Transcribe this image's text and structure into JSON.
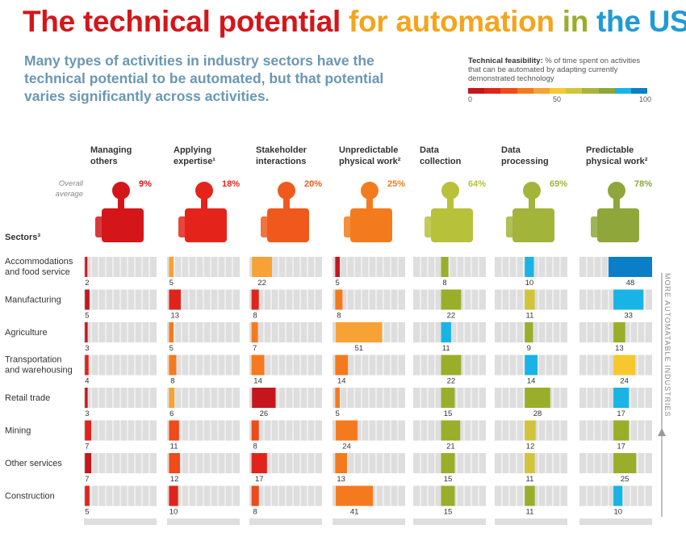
{
  "title_parts": [
    {
      "text": "The technical potential ",
      "color": "#d4161a"
    },
    {
      "text": "for automation ",
      "color": "#f4a51c"
    },
    {
      "text": "in ",
      "color": "#9aae2a"
    },
    {
      "text": "the US",
      "color": "#1f9bd4"
    }
  ],
  "subtitle": "Many types of activities in industry sectors have the technical potential to be automated, but that potential varies significantly across activities.",
  "legend": {
    "bold": "Technical feasibility:",
    "text": " % of time spent on activities that can be automated by adapting currently demonstrated technology",
    "colors": [
      "#c4161c",
      "#e0241b",
      "#ee4a1a",
      "#f57a1d",
      "#f7a234",
      "#f5c82d",
      "#d2c43a",
      "#a9b53b",
      "#8aa83a",
      "#1ab3e6",
      "#0a7fc7"
    ],
    "ticks": [
      "0",
      "50",
      "100"
    ]
  },
  "overall_label": "Overall average",
  "sectors_title": "Sectors³",
  "side_label": "MORE AUTOMATABLE INDUSTRIES",
  "chart_data": {
    "type": "bar",
    "activities": [
      {
        "name": "Managing others",
        "lines": [
          "Managing",
          "others"
        ],
        "avg": "9%",
        "color": "#d4161a"
      },
      {
        "name": "Applying expertise¹",
        "lines": [
          "Applying",
          "expertise¹"
        ],
        "avg": "18%",
        "color": "#e4241b"
      },
      {
        "name": "Stakeholder interactions",
        "lines": [
          "Stakeholder",
          "interactions"
        ],
        "avg": "20%",
        "color": "#ef5a1c"
      },
      {
        "name": "Unpredictable physical work²",
        "lines": [
          "Unpredictable",
          "physical work²"
        ],
        "avg": "25%",
        "color": "#f37b1e"
      },
      {
        "name": "Data collection",
        "lines": [
          "Data",
          "collection"
        ],
        "avg": "64%",
        "color": "#b8c13a"
      },
      {
        "name": "Data processing",
        "lines": [
          "Data",
          "processing"
        ],
        "avg": "69%",
        "color": "#a3b43a"
      },
      {
        "name": "Predictable physical work²",
        "lines": [
          "Predictable",
          "physical work²"
        ],
        "avg": "78%",
        "color": "#8ea63a"
      }
    ],
    "sectors": [
      {
        "name": "Accommodations and food service",
        "lines": [
          "Accommodations",
          "and food service"
        ],
        "values": [
          2,
          5,
          22,
          5,
          8,
          10,
          48
        ]
      },
      {
        "name": "Manufacturing",
        "lines": [
          "Manufacturing"
        ],
        "values": [
          5,
          13,
          8,
          8,
          22,
          11,
          33
        ]
      },
      {
        "name": "Agriculture",
        "lines": [
          "Agriculture"
        ],
        "values": [
          3,
          5,
          7,
          51,
          11,
          9,
          13
        ]
      },
      {
        "name": "Transportation and warehousing",
        "lines": [
          "Transportation",
          "and warehousing"
        ],
        "values": [
          4,
          8,
          14,
          14,
          22,
          14,
          24
        ]
      },
      {
        "name": "Retail trade",
        "lines": [
          "Retail trade"
        ],
        "values": [
          3,
          6,
          26,
          5,
          15,
          28,
          17
        ]
      },
      {
        "name": "Mining",
        "lines": [
          "Mining"
        ],
        "values": [
          7,
          11,
          8,
          24,
          21,
          12,
          17
        ]
      },
      {
        "name": "Other services",
        "lines": [
          "Other services"
        ],
        "values": [
          7,
          12,
          17,
          13,
          15,
          11,
          25
        ]
      },
      {
        "name": "Construction",
        "lines": [
          "Construction"
        ],
        "values": [
          5,
          10,
          8,
          41,
          15,
          11,
          10
        ]
      }
    ],
    "cell_colors": [
      [
        "#d4161a",
        "#f7a234",
        "#f7a234",
        "#c4161c",
        "#9aae2a",
        "#1ab3e6",
        "#0a7fc7"
      ],
      [
        "#c4161c",
        "#e0241b",
        "#e0241b",
        "#f57a1d",
        "#9aae2a",
        "#d2c43a",
        "#1ab3e6"
      ],
      [
        "#c4161c",
        "#f57a1d",
        "#f57a1d",
        "#f7a234",
        "#1ab3e6",
        "#9aae2a",
        "#9aae2a"
      ],
      [
        "#e0241b",
        "#f57a1d",
        "#f57a1d",
        "#f57a1d",
        "#9aae2a",
        "#1ab3e6",
        "#f5c82d"
      ],
      [
        "#c4161c",
        "#f7a234",
        "#c4161c",
        "#f57a1d",
        "#9aae2a",
        "#9aae2a",
        "#1ab3e6"
      ],
      [
        "#e0241b",
        "#ee4a1a",
        "#ee4a1a",
        "#f57a1d",
        "#9aae2a",
        "#d2c43a",
        "#9aae2a"
      ],
      [
        "#c4161c",
        "#ee4a1a",
        "#e0241b",
        "#f57a1d",
        "#9aae2a",
        "#d2c43a",
        "#9aae2a"
      ],
      [
        "#e0241b",
        "#e0241b",
        "#ee4a1a",
        "#f57a1d",
        "#9aae2a",
        "#9aae2a",
        "#1ab3e6"
      ]
    ],
    "xlim": [
      0,
      100
    ]
  }
}
